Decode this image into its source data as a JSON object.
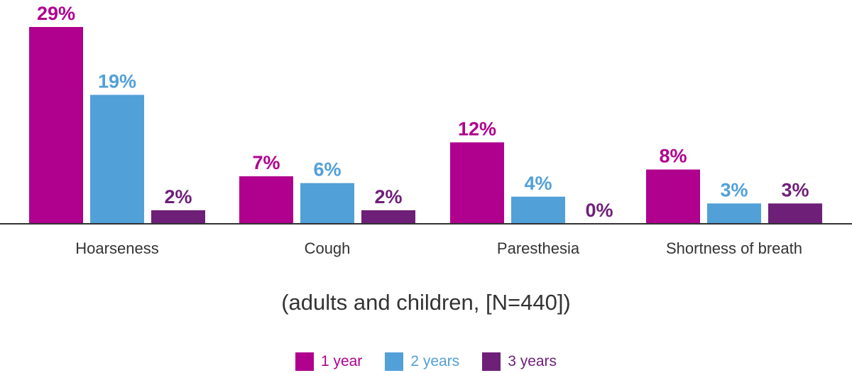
{
  "chart_data": {
    "type": "bar",
    "categories": [
      "Hoarseness",
      "Cough",
      "Paresthesia",
      "Shortness of breath"
    ],
    "series": [
      {
        "name": "1 year",
        "color": "#b0008e",
        "values": [
          29,
          7,
          12,
          8
        ]
      },
      {
        "name": "2 years",
        "color": "#52a0d8",
        "values": [
          19,
          6,
          4,
          3
        ]
      },
      {
        "name": "3 years",
        "color": "#6e1f78",
        "values": [
          2,
          2,
          0,
          3
        ]
      }
    ],
    "value_suffix": "%",
    "xlabel": "(adults and children, [N=440])",
    "ylim": [
      0,
      29
    ],
    "legend_position": "bottom",
    "grid": false
  }
}
